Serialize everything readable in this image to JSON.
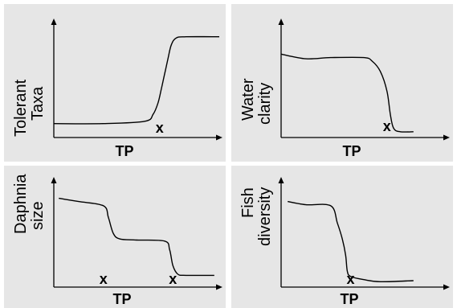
{
  "chart_data": [
    {
      "type": "line",
      "ylabel": [
        "Tolerant",
        "Taxa"
      ],
      "xlabel": "TP",
      "markers": [
        "x"
      ],
      "marker_positions": [
        0.64
      ],
      "series": [
        {
          "x": [
            0.0,
            0.3,
            0.55,
            0.6,
            0.63,
            0.65,
            0.67,
            0.69,
            0.71,
            0.74,
            0.8,
            1.0
          ],
          "y": [
            0.12,
            0.12,
            0.14,
            0.2,
            0.3,
            0.42,
            0.55,
            0.68,
            0.8,
            0.86,
            0.87,
            0.87
          ]
        }
      ]
    },
    {
      "type": "line",
      "ylabel": [
        "Water",
        "clarity"
      ],
      "xlabel": "TP",
      "markers": [
        "x"
      ],
      "marker_positions": [
        0.64
      ],
      "series": [
        {
          "x": [
            0.0,
            0.15,
            0.3,
            0.5,
            0.55,
            0.6,
            0.64,
            0.66,
            0.68,
            0.72,
            0.8
          ],
          "y": [
            0.72,
            0.68,
            0.69,
            0.69,
            0.66,
            0.57,
            0.4,
            0.2,
            0.08,
            0.05,
            0.05
          ]
        }
      ]
    },
    {
      "type": "line",
      "ylabel": [
        "Daphnia",
        "size"
      ],
      "xlabel": "TP",
      "markers": [
        "x",
        "x"
      ],
      "marker_positions": [
        0.3,
        0.72
      ],
      "series": [
        {
          "x": [
            0.03,
            0.15,
            0.3,
            0.33,
            0.36,
            0.4,
            0.5,
            0.67,
            0.7,
            0.72,
            0.75,
            0.8,
            0.97
          ],
          "y": [
            0.83,
            0.8,
            0.76,
            0.65,
            0.5,
            0.45,
            0.44,
            0.43,
            0.35,
            0.2,
            0.12,
            0.11,
            0.11
          ]
        }
      ]
    },
    {
      "type": "line",
      "ylabel": [
        "Fish",
        "diversity"
      ],
      "xlabel": "TP",
      "markers": [
        "x"
      ],
      "marker_positions": [
        0.42
      ],
      "series": [
        {
          "x": [
            0.04,
            0.15,
            0.3,
            0.34,
            0.37,
            0.39,
            0.4,
            0.42,
            0.5,
            0.6,
            0.8
          ],
          "y": [
            0.8,
            0.77,
            0.76,
            0.6,
            0.45,
            0.3,
            0.15,
            0.1,
            0.07,
            0.05,
            0.06
          ]
        }
      ]
    }
  ]
}
